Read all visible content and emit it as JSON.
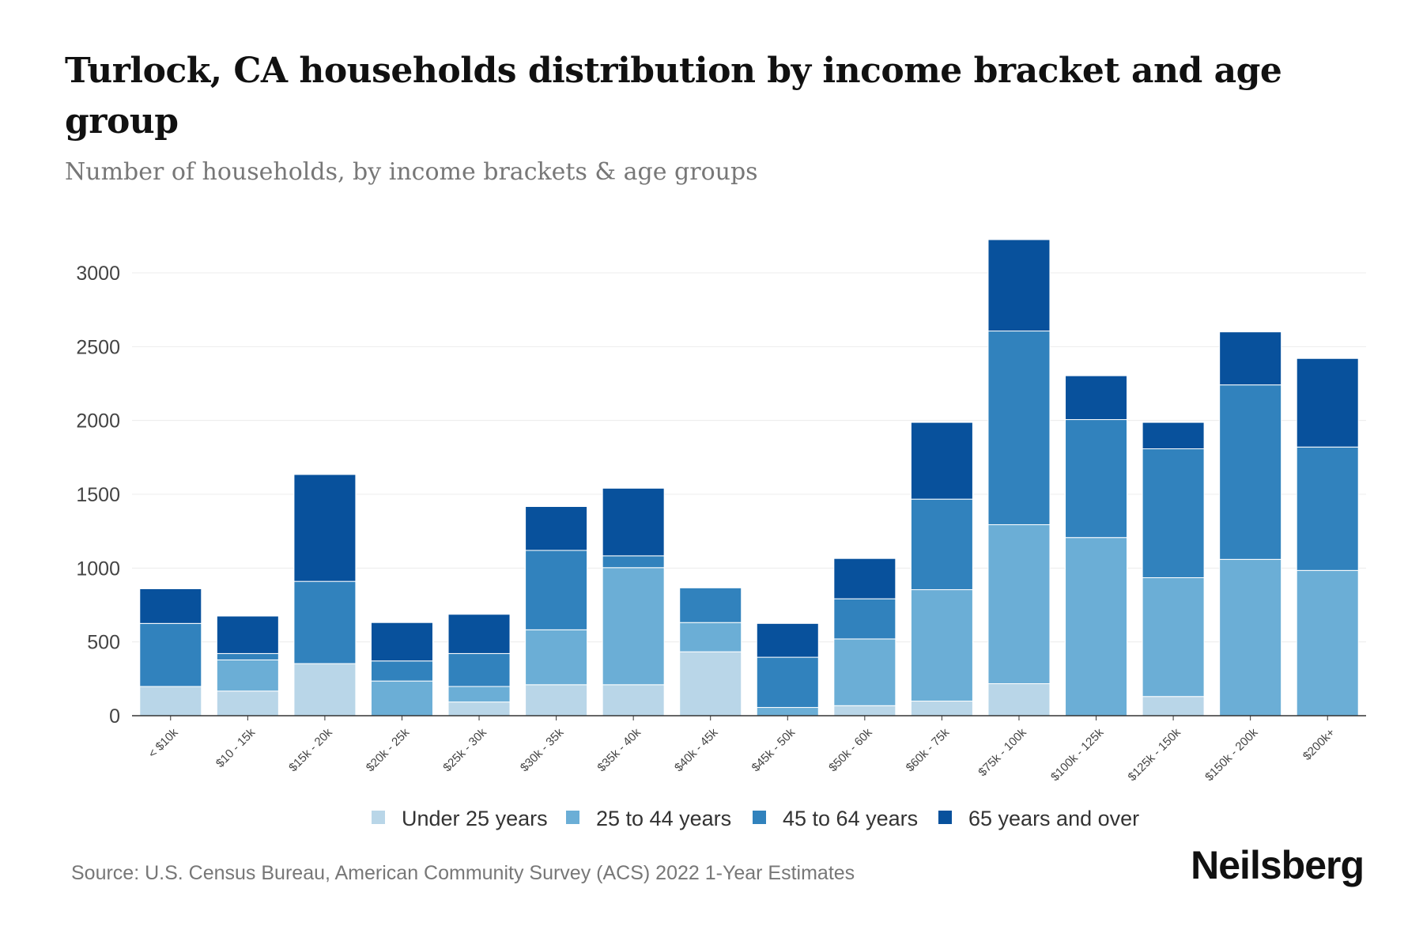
{
  "chart_data": {
    "type": "bar",
    "stacked": true,
    "title": "Turlock, CA households distribution by income bracket and age group",
    "subtitle": "Number of households, by income brackets & age groups",
    "xlabel": "",
    "ylabel": "",
    "ylim": [
      0,
      3300
    ],
    "yticks": [
      0,
      500,
      1000,
      1500,
      2000,
      2500,
      3000
    ],
    "grid": true,
    "legend_position": "bottom",
    "categories": [
      "< $10k",
      "$10 - 15k",
      "$15k - 20k",
      "$20k - 25k",
      "$25k - 30k",
      "$30k - 35k",
      "$35k - 40k",
      "$40k - 45k",
      "$45k - 50k",
      "$50k - 60k",
      "$60k - 75k",
      "$75k - 100k",
      "$100k - 125k",
      "$125k - 150k",
      "$150k - 200k",
      "$200k+"
    ],
    "series": [
      {
        "name": "Under 25 years",
        "color": "#b9d6e8",
        "values": [
          198,
          167,
          353,
          0,
          93,
          210,
          210,
          433,
          0,
          68,
          99,
          217,
          0,
          130,
          0,
          0
        ]
      },
      {
        "name": "25 to 44 years",
        "color": "#6baed6",
        "values": [
          0,
          211,
          0,
          235,
          105,
          372,
          793,
          198,
          56,
          452,
          755,
          1077,
          1207,
          805,
          1059,
          984
        ]
      },
      {
        "name": "45 to 64 years",
        "color": "#3182bd",
        "values": [
          427,
          43,
          557,
          136,
          223,
          538,
          80,
          235,
          340,
          272,
          613,
          1312,
          799,
          873,
          1182,
          836
        ]
      },
      {
        "name": "65 years and over",
        "color": "#08519c",
        "values": [
          235,
          254,
          724,
          260,
          266,
          297,
          458,
          0,
          229,
          273,
          520,
          619,
          297,
          179,
          359,
          600
        ]
      }
    ]
  },
  "source": "Source: U.S. Census Bureau, American Community Survey (ACS) 2022 1-Year Estimates",
  "brand": "Neilsberg"
}
